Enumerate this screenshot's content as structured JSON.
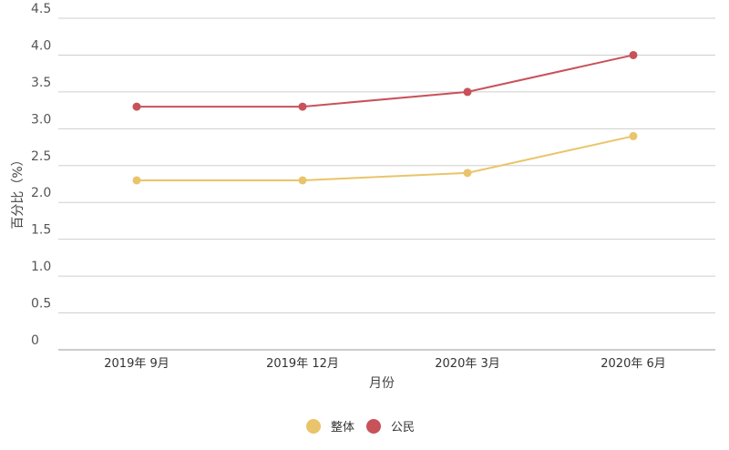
{
  "chart_data": {
    "type": "line",
    "categories": [
      "2019年 9月",
      "2019年 12月",
      "2020年 3月",
      "2020年 6月"
    ],
    "series": [
      {
        "name": "整体",
        "values": [
          2.3,
          2.3,
          2.4,
          2.9
        ],
        "color": "#E9C46A"
      },
      {
        "name": "公民",
        "values": [
          3.3,
          3.3,
          3.5,
          4.0
        ],
        "color": "#C8525A"
      }
    ],
    "xlabel": "月份",
    "ylabel": "百分比（%）",
    "ylim": [
      0,
      4.5
    ],
    "yticks": [
      "0",
      "0.5",
      "1.0",
      "1.5",
      "2.0",
      "2.5",
      "3.0",
      "3.5",
      "4.0",
      "4.5"
    ],
    "grid": true,
    "legend_position": "bottom-center"
  }
}
